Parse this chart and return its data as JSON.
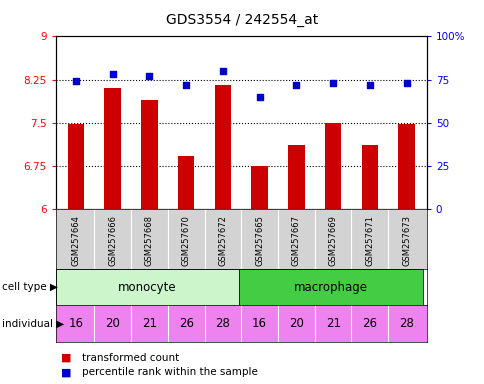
{
  "title": "GDS3554 / 242554_at",
  "samples": [
    "GSM257664",
    "GSM257666",
    "GSM257668",
    "GSM257670",
    "GSM257672",
    "GSM257665",
    "GSM257667",
    "GSM257669",
    "GSM257671",
    "GSM257673"
  ],
  "bar_values": [
    7.48,
    8.1,
    7.9,
    6.92,
    8.15,
    6.75,
    7.12,
    7.5,
    7.12,
    7.48
  ],
  "scatter_values": [
    74,
    78,
    77,
    72,
    80,
    65,
    72,
    73,
    72,
    73
  ],
  "cell_types": [
    "monocyte",
    "monocyte",
    "monocyte",
    "monocyte",
    "monocyte",
    "macrophage",
    "macrophage",
    "macrophage",
    "macrophage",
    "macrophage"
  ],
  "individuals": [
    "16",
    "20",
    "21",
    "26",
    "28",
    "16",
    "20",
    "21",
    "26",
    "28"
  ],
  "bar_color": "#cc0000",
  "scatter_color": "#0000cc",
  "ylim_left": [
    6.0,
    9.0
  ],
  "ylim_right": [
    0,
    100
  ],
  "yticks_left": [
    6.0,
    6.75,
    7.5,
    8.25,
    9.0
  ],
  "ytick_labels_left": [
    "6",
    "6.75",
    "7.5",
    "8.25",
    "9"
  ],
  "yticks_right": [
    0,
    25,
    50,
    75,
    100
  ],
  "ytick_labels_right": [
    "0",
    "25",
    "50",
    "75",
    "100%"
  ],
  "hlines": [
    6.75,
    7.5,
    8.25
  ],
  "monocyte_color_light": "#ccf5cc",
  "macrophage_color": "#44cc44",
  "individual_color": "#ee82ee",
  "row_bg_color": "#d3d3d3",
  "figw": 4.85,
  "figh": 3.84
}
